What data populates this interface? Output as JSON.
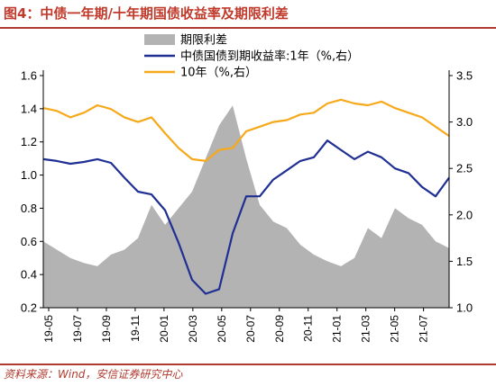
{
  "title": "图4：中债一年期/十年期国债收益率及期限利差",
  "source": "资料来源：Wind，安信证券研究中心",
  "colors": {
    "spread": "#b3b3b3",
    "y1": "#1f2f93",
    "y10": "#f5a91b",
    "title": "#c0392b"
  },
  "chart_data": {
    "type": "area",
    "title": "图4：中债一年期/十年期国债收益率及期限利差",
    "x_tick_labels": [
      "19-05",
      "19-07",
      "19-09",
      "19-11",
      "20-01",
      "20-03",
      "20-05",
      "20-07",
      "20-09",
      "20-11",
      "21-01",
      "21-03",
      "21-05",
      "21-07"
    ],
    "x_range": [
      "2019-05",
      "2021-09"
    ],
    "left_axis": {
      "ylim": [
        0.2,
        1.6
      ],
      "ticks": [
        "0.2",
        "0.4",
        "0.6",
        "0.8",
        "1.0",
        "1.2",
        "1.4",
        "1.6"
      ]
    },
    "right_axis": {
      "ylim": [
        1.0,
        3.5
      ],
      "ticks": [
        "1.0",
        "1.5",
        "2.0",
        "2.5",
        "3.0",
        "3.5"
      ]
    },
    "legend_position": "top-center",
    "grid": false,
    "series": [
      {
        "name": "期限利差",
        "type": "area",
        "axis": "left",
        "points": [
          [
            0,
            0.6
          ],
          [
            1,
            0.55
          ],
          [
            2,
            0.5
          ],
          [
            3,
            0.47
          ],
          [
            4,
            0.45
          ],
          [
            5,
            0.52
          ],
          [
            6,
            0.55
          ],
          [
            7,
            0.62
          ],
          [
            8,
            0.82
          ],
          [
            9,
            0.7
          ],
          [
            10,
            0.8
          ],
          [
            11,
            0.9
          ],
          [
            12,
            1.1
          ],
          [
            13,
            1.3
          ],
          [
            14,
            1.42
          ],
          [
            15,
            1.1
          ],
          [
            16,
            0.82
          ],
          [
            17,
            0.72
          ],
          [
            18,
            0.68
          ],
          [
            19,
            0.58
          ],
          [
            20,
            0.52
          ],
          [
            21,
            0.48
          ],
          [
            22,
            0.45
          ],
          [
            23,
            0.5
          ],
          [
            24,
            0.68
          ],
          [
            25,
            0.62
          ],
          [
            26,
            0.8
          ],
          [
            27,
            0.74
          ],
          [
            28,
            0.7
          ],
          [
            29,
            0.6
          ],
          [
            30,
            0.56
          ]
        ]
      },
      {
        "name": "中债国债到期收益率:1年（%,右）",
        "type": "line",
        "axis": "right",
        "points": [
          [
            0,
            2.6
          ],
          [
            1,
            2.58
          ],
          [
            2,
            2.55
          ],
          [
            3,
            2.57
          ],
          [
            4,
            2.6
          ],
          [
            5,
            2.56
          ],
          [
            6,
            2.4
          ],
          [
            7,
            2.25
          ],
          [
            8,
            2.22
          ],
          [
            9,
            2.05
          ],
          [
            10,
            1.7
          ],
          [
            11,
            1.3
          ],
          [
            12,
            1.15
          ],
          [
            13,
            1.2
          ],
          [
            14,
            1.8
          ],
          [
            15,
            2.2
          ],
          [
            16,
            2.2
          ],
          [
            17,
            2.38
          ],
          [
            18,
            2.48
          ],
          [
            19,
            2.58
          ],
          [
            20,
            2.62
          ],
          [
            21,
            2.8
          ],
          [
            22,
            2.7
          ],
          [
            23,
            2.6
          ],
          [
            24,
            2.68
          ],
          [
            25,
            2.62
          ],
          [
            26,
            2.5
          ],
          [
            27,
            2.45
          ],
          [
            28,
            2.3
          ],
          [
            29,
            2.2
          ],
          [
            30,
            2.4
          ]
        ]
      },
      {
        "name": "10年（%,右）",
        "type": "line",
        "axis": "right",
        "points": [
          [
            0,
            3.15
          ],
          [
            1,
            3.12
          ],
          [
            2,
            3.05
          ],
          [
            3,
            3.1
          ],
          [
            4,
            3.18
          ],
          [
            5,
            3.14
          ],
          [
            6,
            3.05
          ],
          [
            7,
            3.0
          ],
          [
            8,
            3.05
          ],
          [
            9,
            2.88
          ],
          [
            10,
            2.72
          ],
          [
            11,
            2.6
          ],
          [
            12,
            2.58
          ],
          [
            13,
            2.7
          ],
          [
            14,
            2.72
          ],
          [
            15,
            2.9
          ],
          [
            16,
            2.95
          ],
          [
            17,
            3.0
          ],
          [
            18,
            3.02
          ],
          [
            19,
            3.08
          ],
          [
            20,
            3.1
          ],
          [
            21,
            3.2
          ],
          [
            22,
            3.24
          ],
          [
            23,
            3.2
          ],
          [
            24,
            3.18
          ],
          [
            25,
            3.22
          ],
          [
            26,
            3.15
          ],
          [
            27,
            3.1
          ],
          [
            28,
            3.05
          ],
          [
            29,
            2.95
          ],
          [
            30,
            2.85
          ]
        ]
      }
    ]
  }
}
